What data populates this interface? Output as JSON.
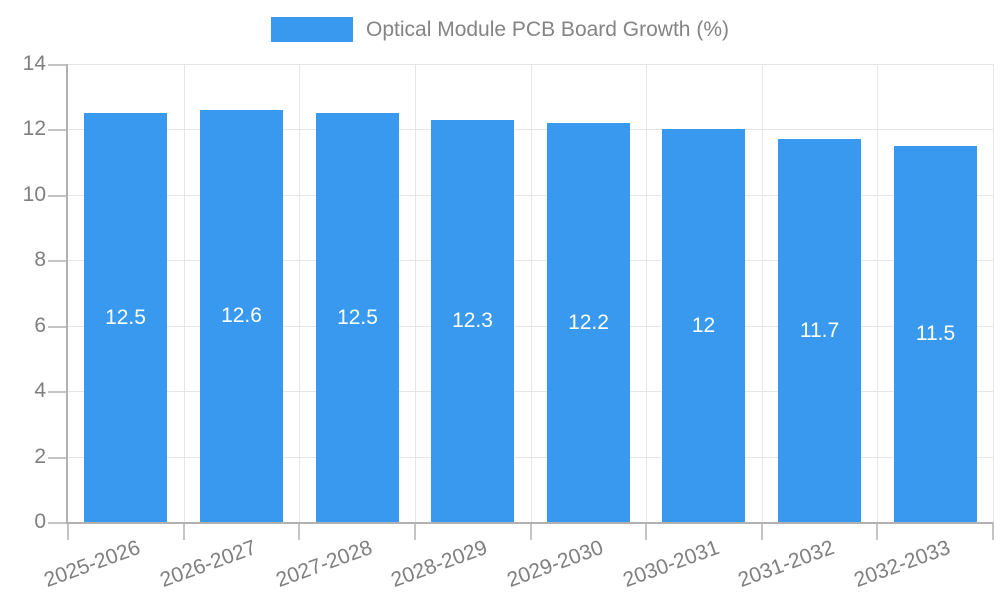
{
  "chart_data": {
    "type": "bar",
    "title": "Optical Module PCB Board Growth (%)",
    "categories": [
      "2025-2026",
      "2026-2027",
      "2027-2028",
      "2028-2029",
      "2029-2030",
      "2030-2031",
      "2031-2032",
      "2032-2033"
    ],
    "values": [
      12.5,
      12.6,
      12.5,
      12.3,
      12.2,
      12,
      11.7,
      11.5
    ],
    "xlabel": "",
    "ylabel": "",
    "ylim": [
      0,
      14
    ],
    "yticks": [
      0,
      2,
      4,
      6,
      8,
      10,
      12,
      14
    ],
    "grid": true,
    "legend_position": "top",
    "x_label_rotation_deg": -20,
    "bar_value_labels_inside": true
  },
  "legend": {
    "label": "Optical Module PCB Board Growth (%)"
  },
  "colors": {
    "bar": "#3999ee",
    "bar_value_text": "#ffffff",
    "grid": "#e6e6e6",
    "axis": "#b1b1b1",
    "tick": "#c4c4c4",
    "axis_text": "#7f7f7f",
    "legend_text": "#848484",
    "background": "#ffffff"
  }
}
